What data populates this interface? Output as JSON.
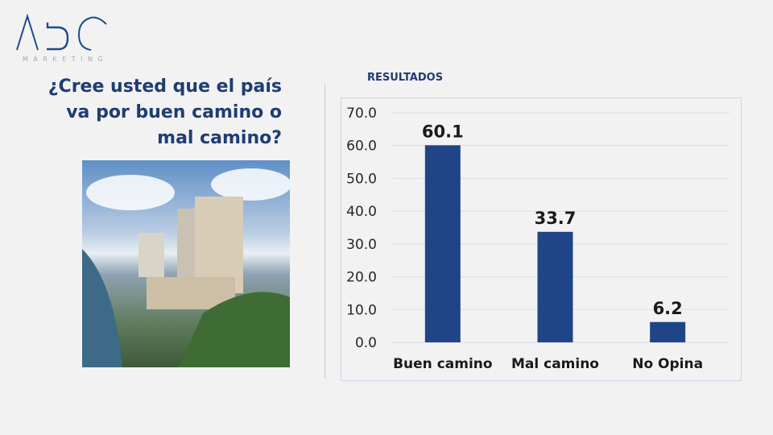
{
  "logo": {
    "text": "ABC",
    "subtitle": "MARKETING",
    "color": "#1f4a8c"
  },
  "question": "¿Cree usted que el país va por buen camino o mal camino?",
  "chart_header": "RESULTADOS",
  "chart_data": {
    "type": "bar",
    "categories": [
      "Buen camino",
      "Mal camino",
      "No Opina"
    ],
    "values": [
      60.1,
      33.7,
      6.2
    ],
    "value_labels": [
      "60.1",
      "33.7",
      "6.2"
    ],
    "ylim": [
      0,
      70
    ],
    "yticks": [
      "0.0",
      "10.0",
      "20.0",
      "30.0",
      "40.0",
      "50.0",
      "60.0",
      "70.0"
    ],
    "grid": true,
    "bar_color": "#1f4588"
  }
}
